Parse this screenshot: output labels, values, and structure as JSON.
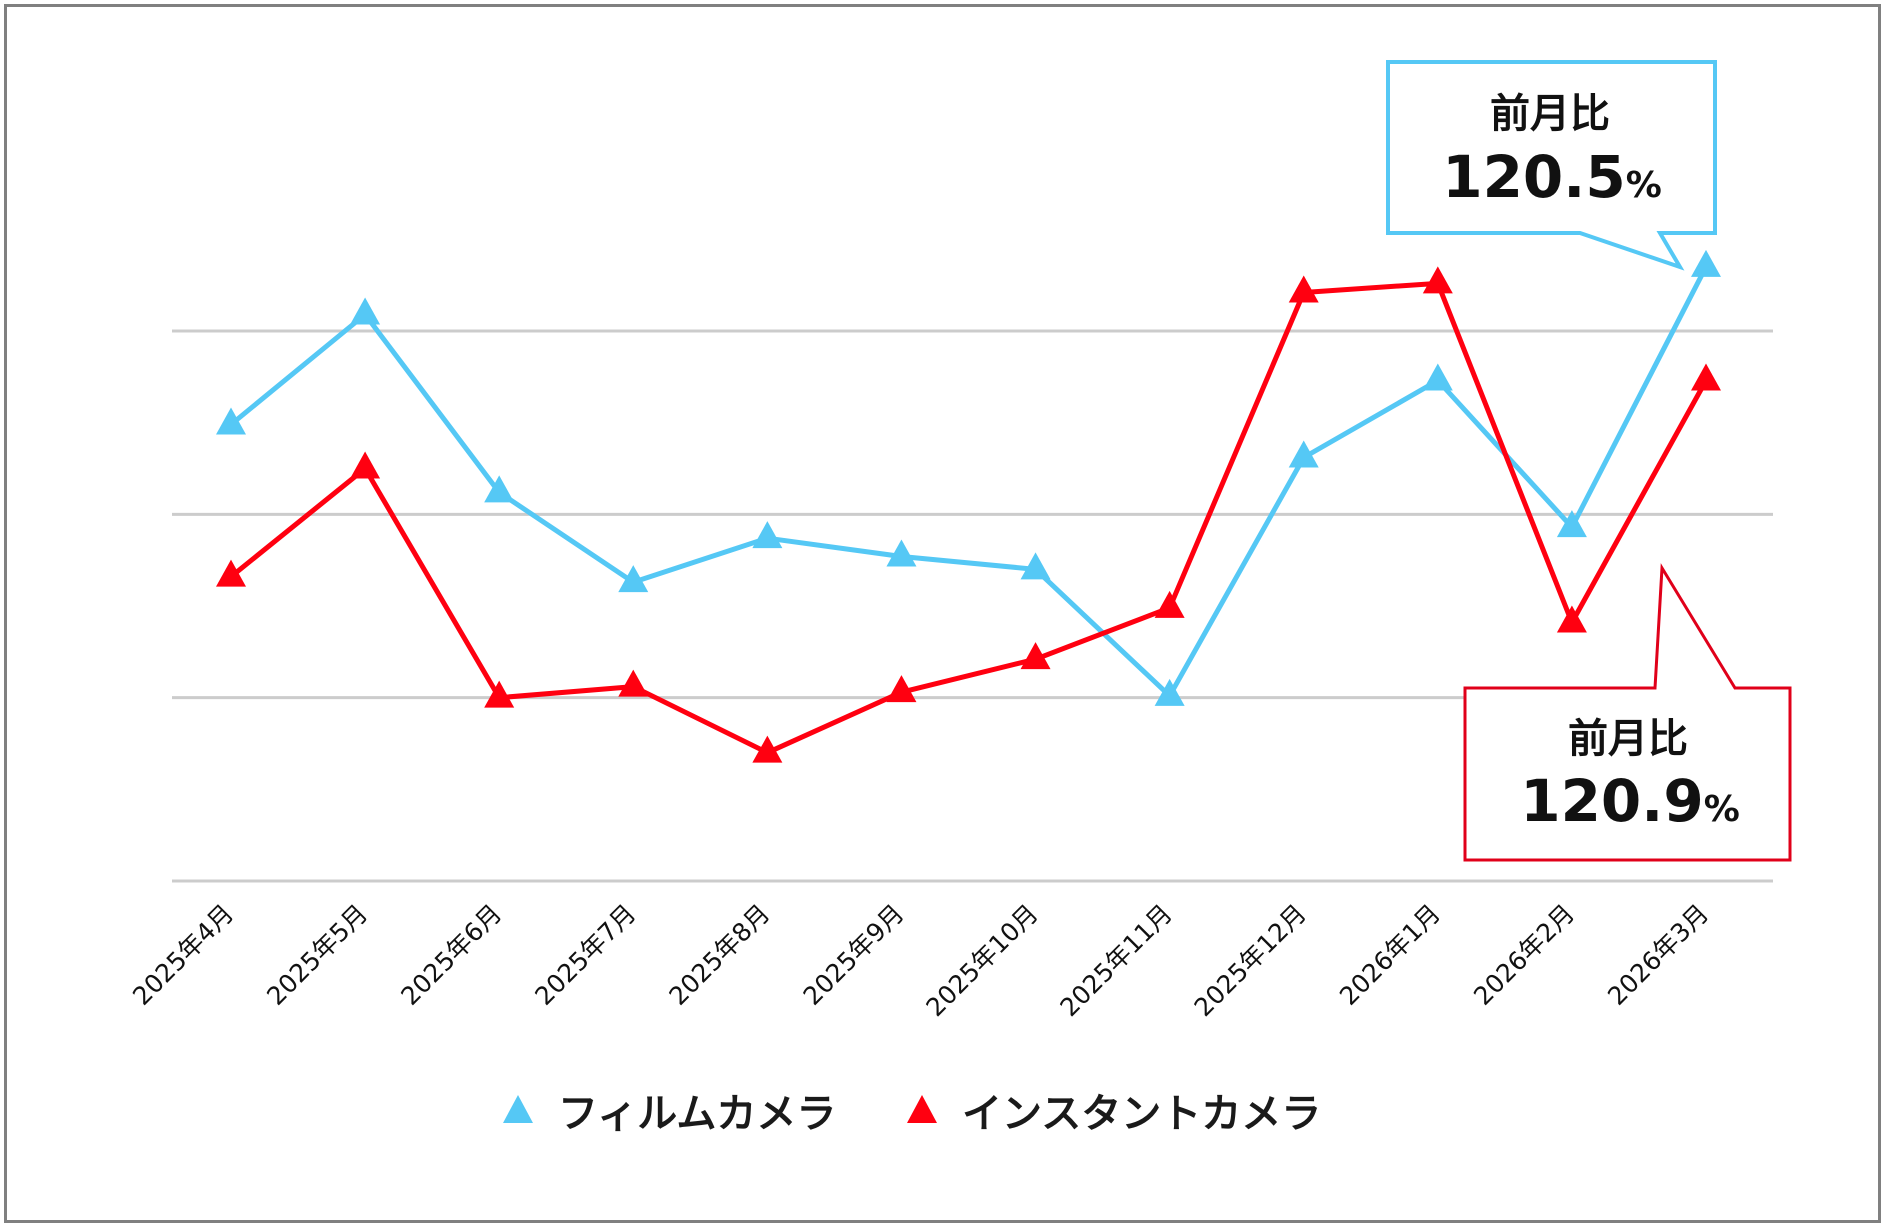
{
  "chart_data": {
    "type": "line",
    "title": "",
    "xlabel": "",
    "ylabel": "",
    "y_tick_labels_visible": false,
    "gridlines": [
      50,
      60,
      70,
      80
    ],
    "ylim": [
      50,
      80
    ],
    "grid": true,
    "legend_position": "bottom",
    "categories": [
      "2025年4月",
      "2025年5月",
      "2025年6月",
      "2025年7月",
      "2025年8月",
      "2025年9月",
      "2025年10月",
      "2025年11月",
      "2025年12月",
      "2026年1月",
      "2026年2月",
      "2026年3月"
    ],
    "series": [
      {
        "name": "フィルムカメラ",
        "color": "#55c8f5",
        "marker": "triangle",
        "values": [
          74.9,
          80.9,
          71.2,
          66.3,
          68.7,
          67.7,
          67.0,
          60.1,
          73.1,
          77.3,
          69.3,
          83.5
        ]
      },
      {
        "name": "インスタントカメラ",
        "color": "#ff0010",
        "marker": "triangle",
        "values": [
          66.6,
          72.5,
          60.0,
          60.6,
          57.0,
          60.3,
          62.1,
          64.9,
          82.1,
          82.6,
          64.1,
          77.3
        ]
      }
    ],
    "annotations": [
      {
        "series": "フィルムカメラ",
        "point": "2026年3月",
        "label": "前月比",
        "value": "120.5",
        "unit": "%",
        "border_color": "#55c8f5"
      },
      {
        "series": "インスタントカメラ",
        "point": "2026年3月",
        "label": "前月比",
        "value": "120.9",
        "unit": "%",
        "border_color": "#e0001a"
      }
    ]
  },
  "legend": {
    "items": [
      {
        "label": "フィルムカメラ",
        "color": "#55c8f5"
      },
      {
        "label": "インスタントカメラ",
        "color": "#ff0010"
      }
    ]
  },
  "callouts": {
    "film": {
      "label": "前月比",
      "value": "120.5",
      "unit": "%"
    },
    "instant": {
      "label": "前月比",
      "value": "120.9",
      "unit": "%"
    }
  },
  "colors": {
    "frame": "#808080",
    "grid": "#cccccc",
    "film": "#55c8f5",
    "instant": "#ff0010",
    "instant_callout": "#e0001a"
  }
}
